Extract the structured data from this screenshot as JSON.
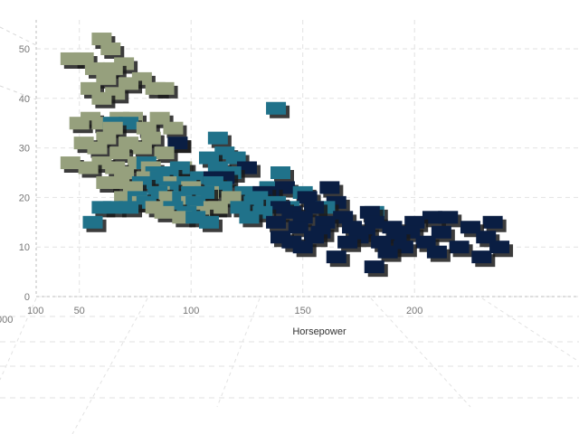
{
  "chart_data": {
    "type": "scatter",
    "projection": "3d-perspective",
    "xlabel": "Horsepower",
    "ylabel": "",
    "xlim": [
      40,
      240
    ],
    "ylim": [
      0,
      55
    ],
    "x_ticks": [
      {
        "value": 50,
        "label": "50"
      },
      {
        "value": 100,
        "label": "100"
      },
      {
        "value": 150,
        "label": "150"
      },
      {
        "value": 200,
        "label": "200"
      }
    ],
    "y_ticks": [
      {
        "value": 0,
        "label": "0"
      },
      {
        "value": 10,
        "label": "10"
      },
      {
        "value": 20,
        "label": "20"
      },
      {
        "value": 30,
        "label": "30"
      },
      {
        "value": 40,
        "label": "40"
      },
      {
        "value": 50,
        "label": "50"
      }
    ],
    "cut_off_labels": [
      "100",
      "000"
    ],
    "grid": true,
    "marker": "cube",
    "series": [
      {
        "color": "#96A07D",
        "points": [
          [
            46,
            48
          ],
          [
            52,
            48
          ],
          [
            57,
            46
          ],
          [
            62,
            44
          ],
          [
            65,
            46
          ],
          [
            70,
            47
          ],
          [
            55,
            42
          ],
          [
            60,
            40
          ],
          [
            66,
            41
          ],
          [
            72,
            43
          ],
          [
            78,
            44
          ],
          [
            84,
            42
          ],
          [
            88,
            42
          ],
          [
            50,
            35
          ],
          [
            55,
            36
          ],
          [
            60,
            35
          ],
          [
            65,
            34
          ],
          [
            68,
            36
          ],
          [
            74,
            36
          ],
          [
            80,
            34
          ],
          [
            86,
            36
          ],
          [
            92,
            34
          ],
          [
            52,
            31
          ],
          [
            58,
            30
          ],
          [
            62,
            32
          ],
          [
            68,
            29
          ],
          [
            72,
            31
          ],
          [
            78,
            30
          ],
          [
            82,
            32
          ],
          [
            88,
            29
          ],
          [
            94,
            31
          ],
          [
            46,
            27
          ],
          [
            54,
            26
          ],
          [
            60,
            27
          ],
          [
            66,
            26
          ],
          [
            70,
            25
          ],
          [
            76,
            27
          ],
          [
            82,
            26
          ],
          [
            88,
            25
          ],
          [
            96,
            26
          ],
          [
            62,
            23
          ],
          [
            68,
            23
          ],
          [
            74,
            22
          ],
          [
            80,
            24
          ],
          [
            86,
            21
          ],
          [
            92,
            23
          ],
          [
            100,
            22
          ],
          [
            108,
            21
          ],
          [
            70,
            20
          ],
          [
            78,
            19
          ],
          [
            84,
            18
          ],
          [
            90,
            20
          ],
          [
            100,
            19
          ],
          [
            110,
            18
          ],
          [
            118,
            20
          ],
          [
            88,
            17
          ],
          [
            96,
            16
          ],
          [
            104,
            17
          ],
          [
            112,
            18
          ],
          [
            60,
            52
          ],
          [
            64,
            50
          ]
        ]
      },
      {
        "color": "#20728A",
        "points": [
          [
            56,
            15
          ],
          [
            60,
            18
          ],
          [
            65,
            18
          ],
          [
            72,
            18
          ],
          [
            76,
            20
          ],
          [
            78,
            23
          ],
          [
            80,
            19
          ],
          [
            85,
            21
          ],
          [
            86,
            24
          ],
          [
            90,
            22
          ],
          [
            92,
            18
          ],
          [
            95,
            26
          ],
          [
            98,
            23
          ],
          [
            100,
            21
          ],
          [
            102,
            19
          ],
          [
            104,
            24
          ],
          [
            106,
            21
          ],
          [
            108,
            28
          ],
          [
            110,
            23
          ],
          [
            112,
            26
          ],
          [
            114,
            22
          ],
          [
            115,
            29
          ],
          [
            118,
            25
          ],
          [
            120,
            28
          ],
          [
            122,
            18
          ],
          [
            124,
            21
          ],
          [
            126,
            16
          ],
          [
            128,
            19
          ],
          [
            130,
            20
          ],
          [
            132,
            17
          ],
          [
            135,
            22
          ],
          [
            138,
            19
          ],
          [
            140,
            25
          ],
          [
            144,
            18
          ],
          [
            150,
            21
          ],
          [
            160,
            18
          ],
          [
            182,
            17
          ],
          [
            80,
            27
          ],
          [
            84,
            25
          ],
          [
            90,
            25
          ],
          [
            96,
            20
          ],
          [
            98,
            17
          ],
          [
            102,
            16
          ],
          [
            108,
            15
          ],
          [
            112,
            32
          ],
          [
            65,
            35
          ],
          [
            72,
            35
          ],
          [
            138,
            38
          ]
        ]
      },
      {
        "color": "#0A1E43",
        "points": [
          [
            94,
            31
          ],
          [
            110,
            24
          ],
          [
            115,
            24
          ],
          [
            125,
            26
          ],
          [
            135,
            21
          ],
          [
            140,
            18
          ],
          [
            145,
            17
          ],
          [
            148,
            14
          ],
          [
            150,
            16
          ],
          [
            152,
            20
          ],
          [
            155,
            18
          ],
          [
            158,
            13
          ],
          [
            160,
            15
          ],
          [
            162,
            22
          ],
          [
            165,
            19
          ],
          [
            168,
            16
          ],
          [
            170,
            11
          ],
          [
            172,
            14
          ],
          [
            175,
            12
          ],
          [
            178,
            13
          ],
          [
            180,
            17
          ],
          [
            182,
            15
          ],
          [
            185,
            11
          ],
          [
            188,
            9
          ],
          [
            190,
            14
          ],
          [
            192,
            12
          ],
          [
            195,
            10
          ],
          [
            198,
            13
          ],
          [
            200,
            15
          ],
          [
            205,
            11
          ],
          [
            208,
            16
          ],
          [
            210,
            9
          ],
          [
            212,
            13
          ],
          [
            215,
            16
          ],
          [
            220,
            10
          ],
          [
            225,
            14
          ],
          [
            230,
            8
          ],
          [
            232,
            12
          ],
          [
            235,
            15
          ],
          [
            238,
            10
          ],
          [
            182,
            6
          ],
          [
            165,
            8
          ],
          [
            155,
            12
          ],
          [
            150,
            10
          ],
          [
            145,
            11
          ],
          [
            140,
            12
          ],
          [
            138,
            15
          ],
          [
            142,
            22
          ],
          [
            132,
            21
          ]
        ]
      }
    ]
  }
}
